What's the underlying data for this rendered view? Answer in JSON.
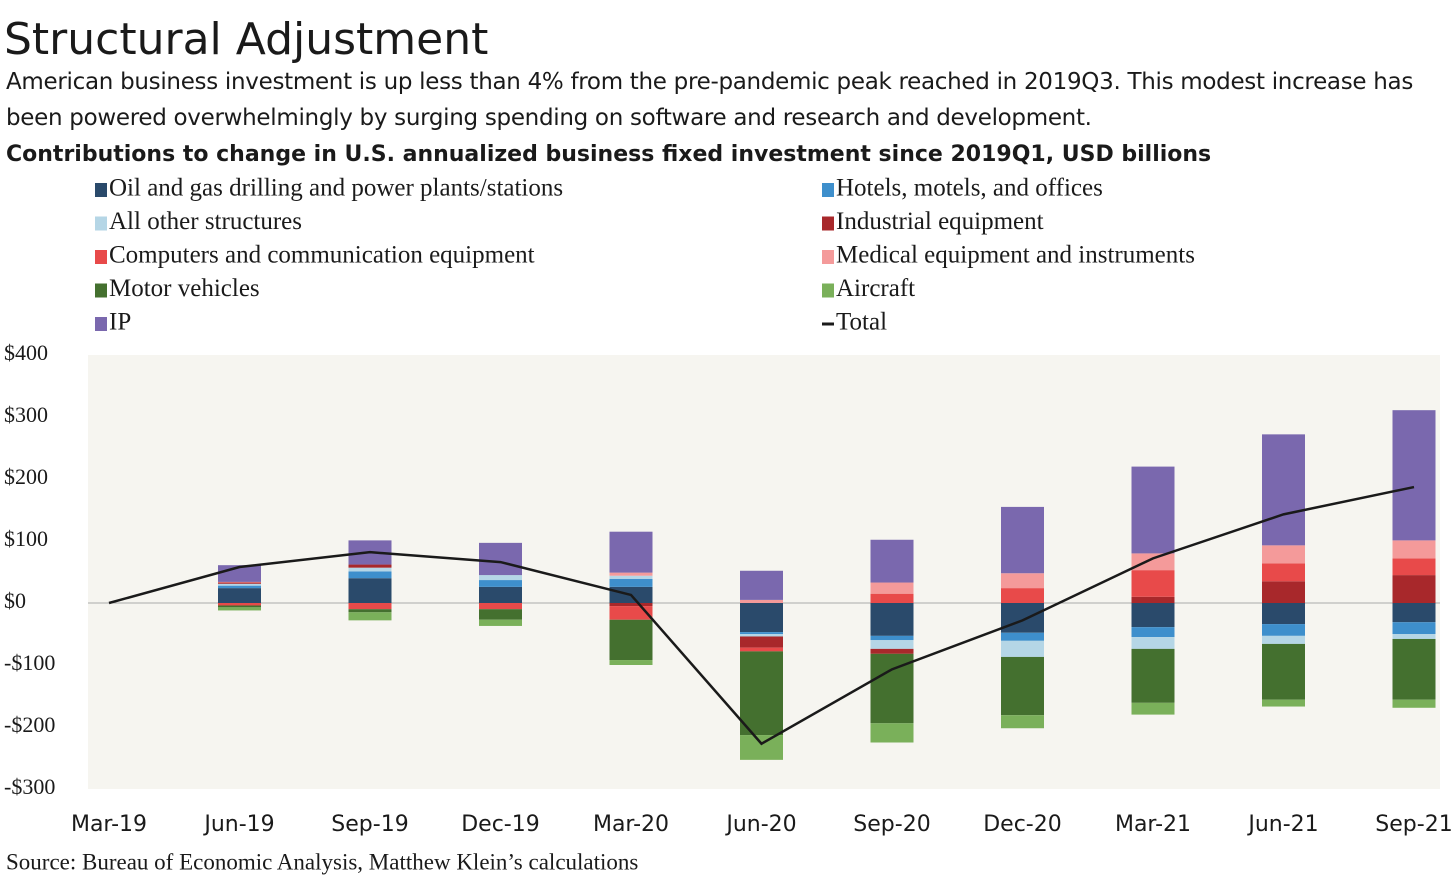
{
  "chart_data": {
    "type": "bar",
    "title": "Structural Adjustment",
    "subtitle": "American business investment is up less than 4% from the pre-pandemic peak reached in 2019Q3. This modest increase has been powered overwhelmingly by surging spending on software and research and development.",
    "chart_title": "Contributions to change in U.S. annualized business fixed investment since 2019Q1, USD billions",
    "source": "Source: Bureau of Economic Analysis, Matthew Klein’s calculations",
    "stacked": true,
    "categories": [
      "Mar-19",
      "Jun-19",
      "Sep-19",
      "Dec-19",
      "Mar-20",
      "Jun-20",
      "Sep-20",
      "Dec-20",
      "Mar-21",
      "Jun-21",
      "Sep-21"
    ],
    "ylim": [
      -300,
      400
    ],
    "yticks": [
      {
        "value": -300,
        "label": "-$300"
      },
      {
        "value": -200,
        "label": "-$200"
      },
      {
        "value": -100,
        "label": "-$100"
      },
      {
        "value": 0,
        "label": "$0"
      },
      {
        "value": 100,
        "label": "$100"
      },
      {
        "value": 200,
        "label": "$200"
      },
      {
        "value": 300,
        "label": "$300"
      },
      {
        "value": 400,
        "label": "$400"
      }
    ],
    "series": [
      {
        "name": "Oil and gas drilling and power plants/stations",
        "color": "#2a4a6b",
        "values": [
          0,
          24,
          40,
          26,
          26,
          -47,
          -53,
          -48,
          -39,
          -34,
          -31
        ]
      },
      {
        "name": "Hotels, motels, and offices",
        "color": "#3e8fcc",
        "values": [
          0,
          4,
          11,
          11,
          13,
          -3,
          -7,
          -13,
          -16,
          -19,
          -19
        ]
      },
      {
        "name": "All other structures",
        "color": "#b5d6e6",
        "values": [
          0,
          3,
          6,
          8,
          5,
          -4,
          -14,
          -26,
          -19,
          -13,
          -8
        ]
      },
      {
        "name": "Industrial equipment",
        "color": "#a8282b",
        "values": [
          0,
          2,
          5,
          0,
          -5,
          -18,
          -8,
          0,
          10,
          35,
          45
        ]
      },
      {
        "name": "Computers and communication equipment",
        "color": "#e84a4a",
        "values": [
          0,
          -4,
          -10,
          -10,
          -22,
          -6,
          15,
          24,
          43,
          29,
          27
        ]
      },
      {
        "name": "Medical equipment and instruments",
        "color": "#f49a9a",
        "values": [
          0,
          1,
          0,
          0,
          5,
          5,
          18,
          24,
          27,
          29,
          29
        ]
      },
      {
        "name": "Motor vehicles",
        "color": "#44702f",
        "values": [
          0,
          -3,
          -5,
          -17,
          -65,
          -135,
          -112,
          -94,
          -87,
          -90,
          -98
        ]
      },
      {
        "name": "Aircraft",
        "color": "#7ab05a",
        "values": [
          0,
          -5,
          -13,
          -10,
          -8,
          -40,
          -31,
          -21,
          -19,
          -11,
          -13
        ]
      },
      {
        "name": "IP",
        "color": "#7a68ae",
        "values": [
          0,
          27,
          39,
          52,
          66,
          47,
          69,
          107,
          140,
          179,
          210
        ]
      },
      {
        "name": "Total",
        "color": "#1a1a1a",
        "type": "line",
        "values": [
          0,
          58,
          82,
          66,
          13,
          -227,
          -107,
          -28,
          72,
          143,
          187
        ]
      }
    ]
  }
}
